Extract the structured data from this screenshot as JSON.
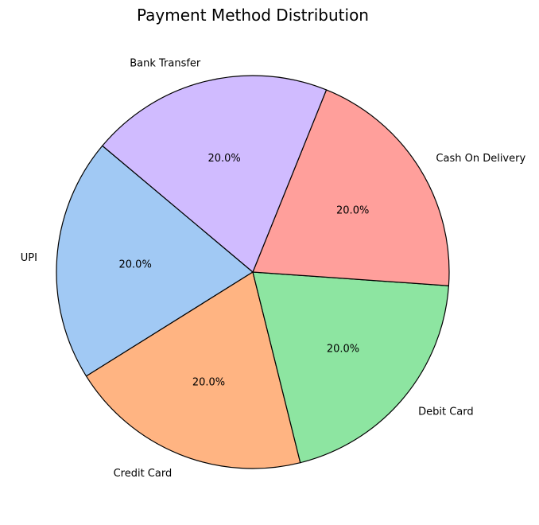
{
  "chart_data": {
    "type": "pie",
    "title": "Payment Method Distribution",
    "categories": [
      "UPI",
      "Credit Card",
      "Debit Card",
      "Cash On Delivery",
      "Bank Transfer"
    ],
    "values": [
      20,
      20,
      20,
      20,
      20
    ],
    "percent_labels": [
      "20.0%",
      "20.0%",
      "20.0%",
      "20.0%",
      "20.0%"
    ],
    "colors": [
      "#a1c9f4",
      "#ffb482",
      "#8de5a1",
      "#ff9f9b",
      "#d0bbff"
    ],
    "edge_color": "#000000",
    "start_angle_deg": 140,
    "direction": "counterclockwise"
  }
}
